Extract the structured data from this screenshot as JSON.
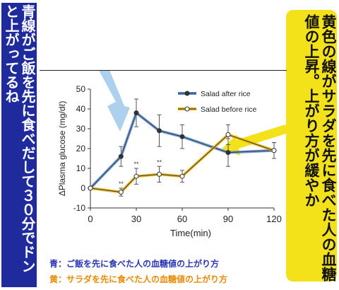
{
  "callouts": {
    "left": "青線がご飯を先に食べだして３０分でドンと上がってるね",
    "right": "黄色の線がサラダを先に食べた人の血糖値の上昇。上がり方が緩やか"
  },
  "notes": {
    "blue": "青：ご飯を先に食べた人の血糖値の上がり方",
    "yellow": "黄：サラダを先に食べた人の血糖値の上がり方"
  },
  "colors": {
    "blue_callout": "#1f2b9c",
    "yellow_callout": "#f3e11a",
    "blue_series": "#5b8fd4",
    "yellow_series": "#e6b10a",
    "blue_arrow": "#a9cdee",
    "yellow_arrow": "#f3e11a",
    "note_blue": "#2a36b5",
    "note_yellow": "#e88a00"
  },
  "chart_data": {
    "type": "line",
    "xlabel": "Time(min)",
    "ylabel": "ΔPlasma glucose (mg/dℓ)",
    "xlim": [
      0,
      120
    ],
    "ylim": [
      -10,
      50
    ],
    "xticks": [
      0,
      30,
      60,
      90,
      120
    ],
    "yticks": [
      -10,
      0,
      10,
      20,
      30,
      40,
      50
    ],
    "x": [
      0,
      20,
      30,
      45,
      60,
      90,
      120
    ],
    "series": [
      {
        "name": "Salad after rice",
        "values": [
          0,
          16,
          38,
          29,
          26,
          18,
          19
        ],
        "errors": [
          0,
          5,
          7,
          8,
          6,
          7,
          4
        ],
        "color": "#5b8fd4"
      },
      {
        "name": "Salad before rice",
        "values": [
          0,
          -2,
          6,
          7,
          6,
          27,
          19
        ],
        "errors": [
          0,
          2,
          4,
          4,
          3,
          5,
          4
        ],
        "color": "#e6b10a"
      }
    ],
    "annotations": [
      {
        "text": "**",
        "x": 20,
        "y": 1
      },
      {
        "text": "**",
        "x": 30,
        "y": 11
      },
      {
        "text": "**",
        "x": 45,
        "y": 12
      }
    ],
    "legend_position": "top-right"
  }
}
